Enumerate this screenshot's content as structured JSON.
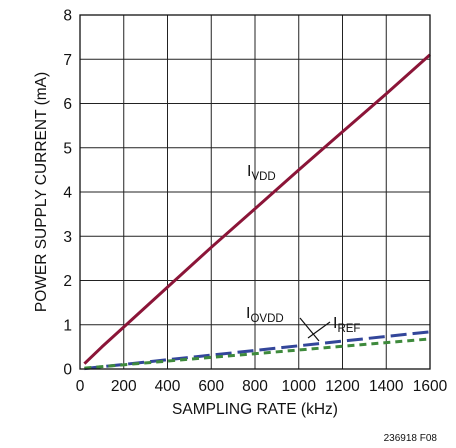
{
  "chart_data": {
    "type": "line",
    "xlabel": "SAMPLING RATE (kHz)",
    "ylabel": "POWER SUPPLY CURRENT (mA)",
    "xlim": [
      0,
      1600
    ],
    "ylim": [
      0,
      8
    ],
    "x_ticks": [
      "0",
      "200",
      "400",
      "600",
      "800",
      "1000",
      "1200",
      "1400",
      "1600"
    ],
    "y_ticks": [
      "0",
      "1",
      "2",
      "3",
      "4",
      "5",
      "6",
      "7",
      "8"
    ],
    "grid": true,
    "series": [
      {
        "name": "I_VDD",
        "label_main": "I",
        "label_sub": "VDD",
        "color": "#8b1538",
        "dash": "solid",
        "points": [
          [
            20,
            0.12
          ],
          [
            100,
            0.5
          ],
          [
            200,
            0.95
          ],
          [
            400,
            1.85
          ],
          [
            600,
            2.75
          ],
          [
            800,
            3.62
          ],
          [
            1000,
            4.5
          ],
          [
            1200,
            5.36
          ],
          [
            1400,
            6.22
          ],
          [
            1600,
            7.1
          ]
        ]
      },
      {
        "name": "I_OVDD",
        "label_main": "I",
        "label_sub": "OVDD",
        "color": "#33469a",
        "dash": "long-dash",
        "points": [
          [
            20,
            0.01
          ],
          [
            1600,
            0.84
          ]
        ]
      },
      {
        "name": "I_REF",
        "label_main": "I",
        "label_sub": "REF",
        "color": "#3e8a3c",
        "dash": "short-dash",
        "points": [
          [
            20,
            0.02
          ],
          [
            1600,
            0.68
          ]
        ]
      }
    ]
  },
  "figure_id": "236918 F08"
}
